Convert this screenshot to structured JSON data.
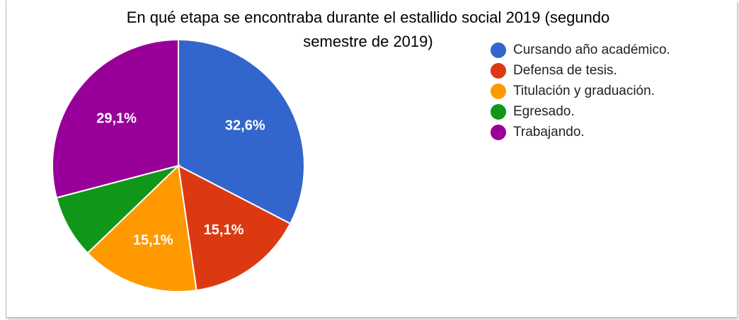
{
  "chart_data": {
    "type": "pie",
    "title": "En qué etapa se encontraba durante el estallido social 2019 (segundo semestre de 2019)",
    "title_lines": [
      "En qué etapa se encontraba durante el estallido social 2019 (segundo",
      "semestre de 2019)"
    ],
    "categories": [
      "Cursando año académico.",
      "Defensa de tesis.",
      "Titulación y graduación.",
      "Egresado.",
      "Trabajando."
    ],
    "values": [
      32.6,
      15.1,
      15.1,
      8.1,
      29.1
    ],
    "data_labels": [
      "32,6%",
      "15,1%",
      "15,1%",
      "",
      "29,1%"
    ],
    "colors": [
      "#3366cc",
      "#dc3912",
      "#ff9900",
      "#109618",
      "#990099"
    ],
    "start_angle_deg": 90,
    "direction": "clockwise",
    "legend_position": "right"
  }
}
